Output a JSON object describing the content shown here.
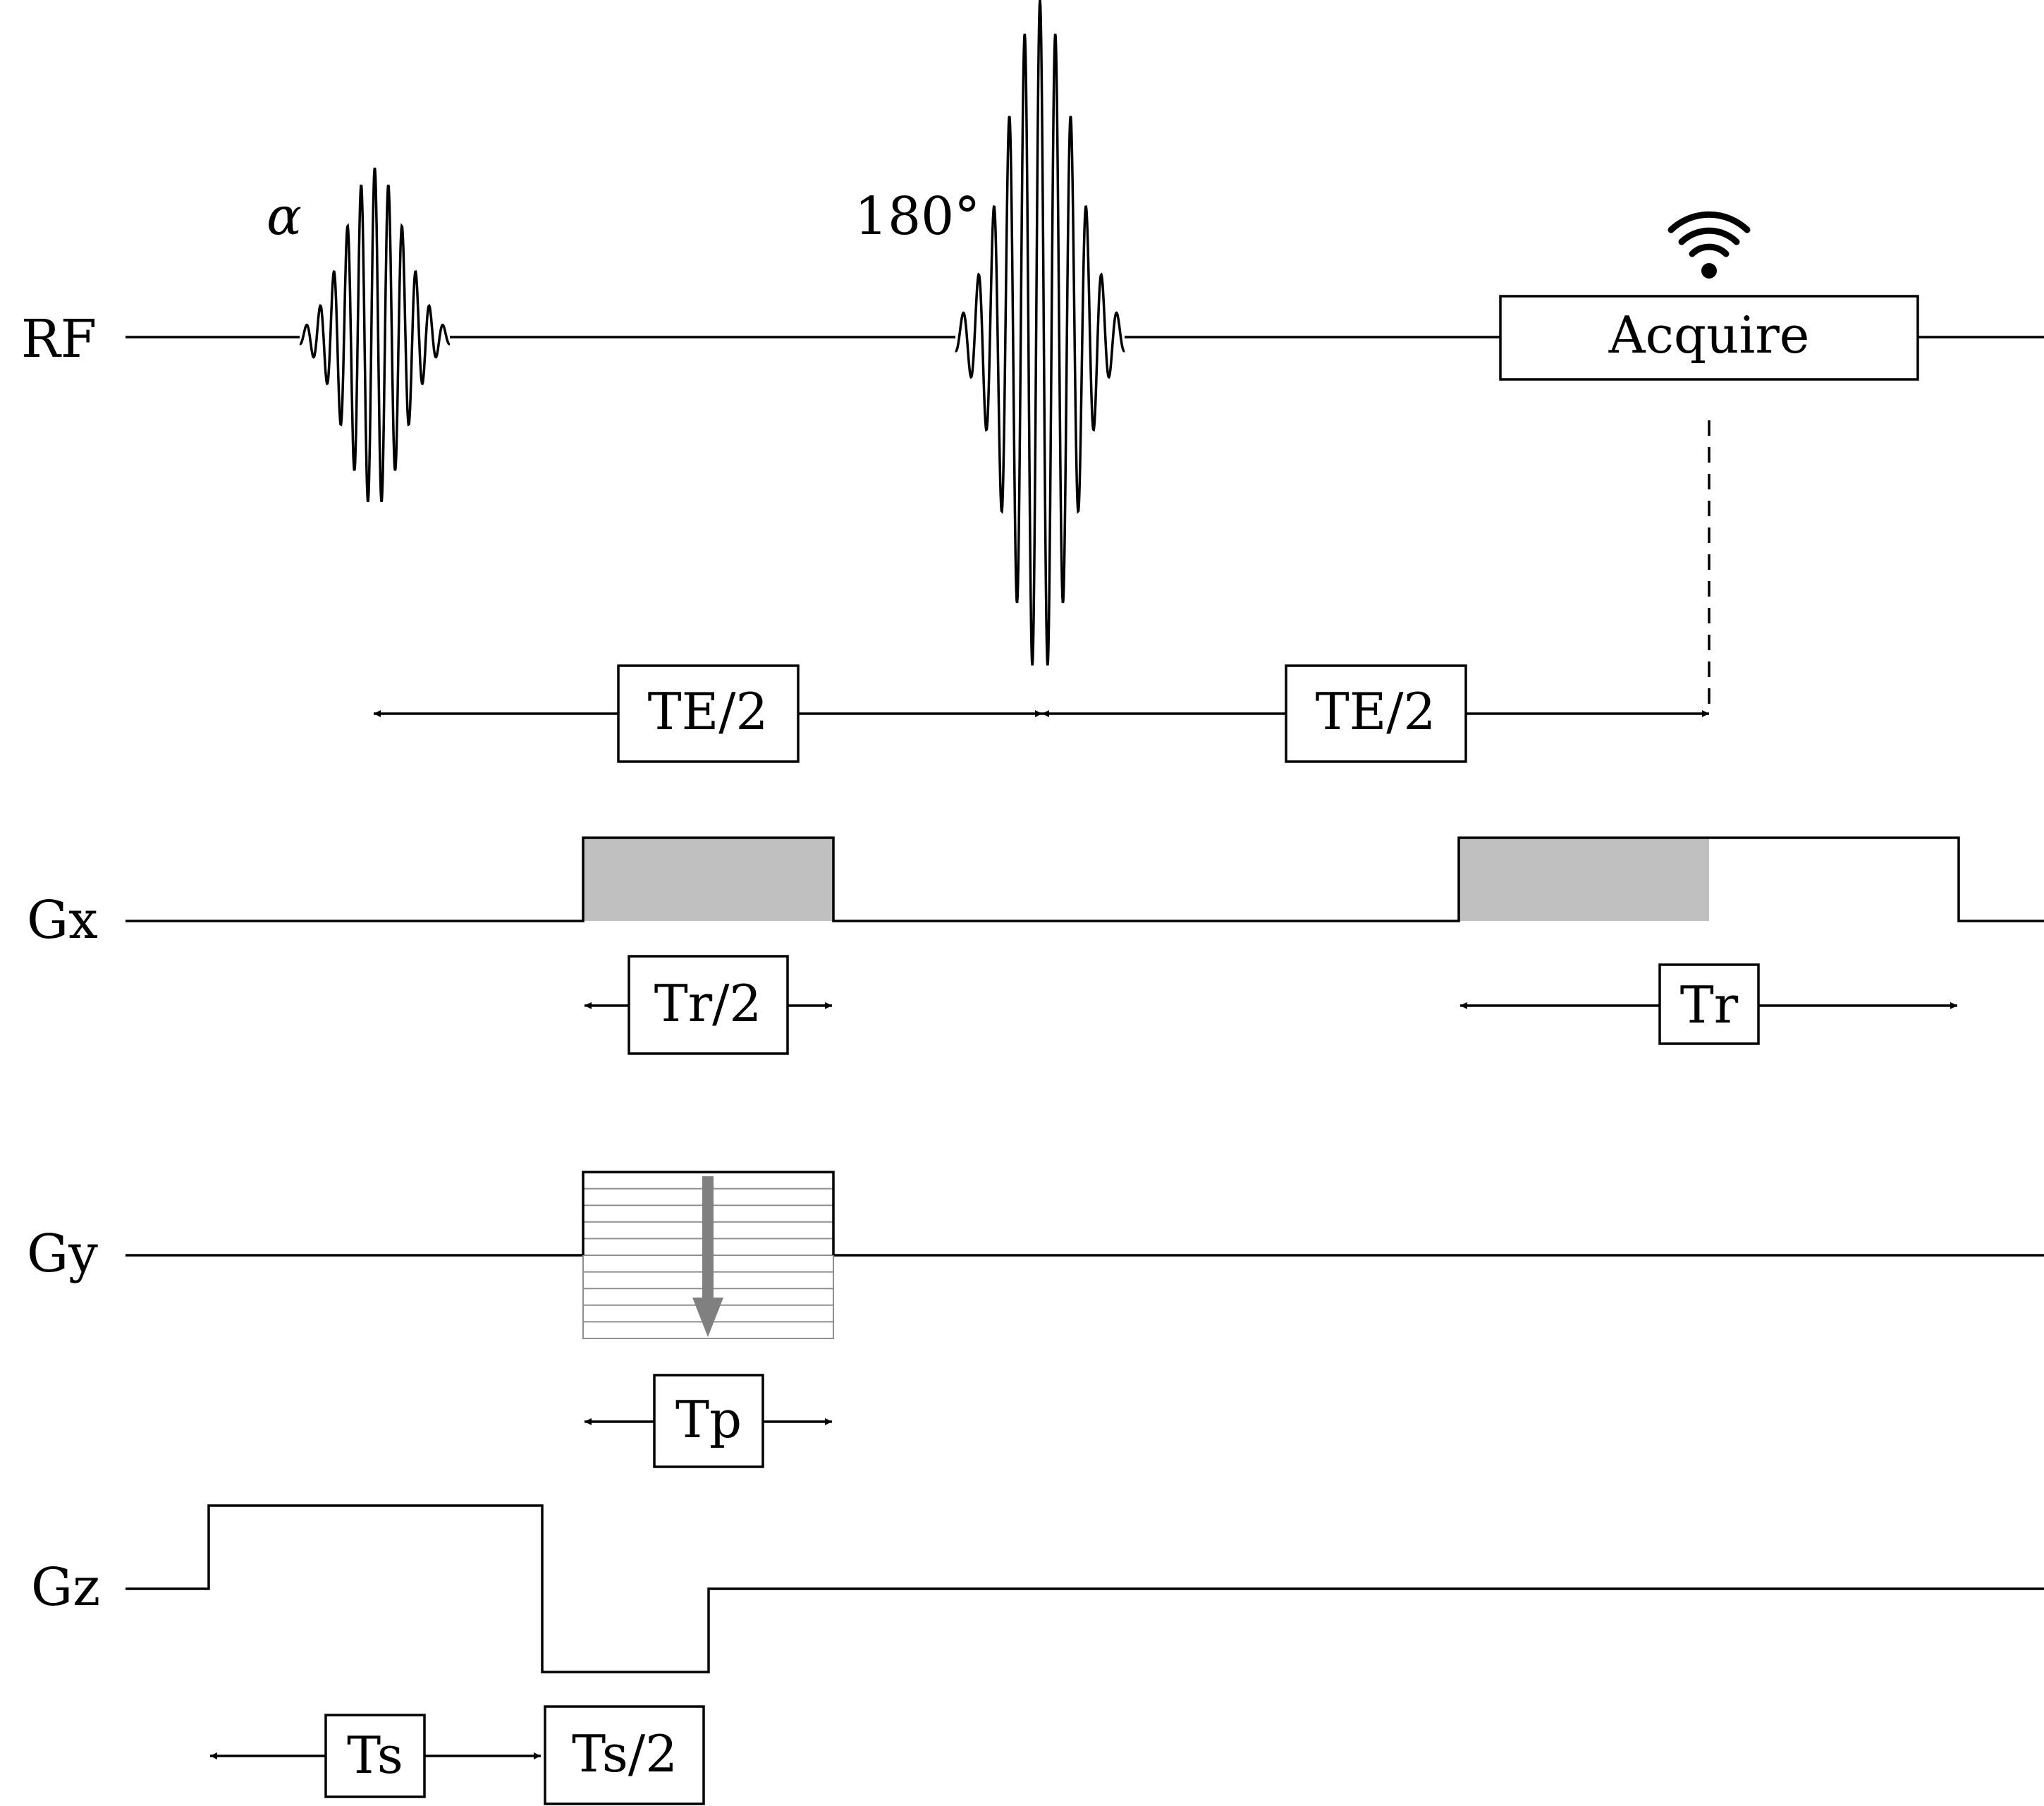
{
  "channels": {
    "rf": "RF",
    "gx": "Gx",
    "gy": "Gy",
    "gz": "Gz"
  },
  "pulses": {
    "excitation": "α",
    "refocus": "180°"
  },
  "acquire": {
    "label": "Acquire",
    "icon": "wifi-signal-icon"
  },
  "intervals": {
    "te_first": "TE/2",
    "te_second": "TE/2",
    "readout_half": "Tr/2",
    "readout": "Tr",
    "phase": "Tp",
    "slice": "Ts",
    "slice_half": "Ts/2"
  },
  "colors": {
    "line": "#000000",
    "shade": "#c0c0c0",
    "phase_arrow": "#808080",
    "phase_lines": "#8f8f8f"
  }
}
